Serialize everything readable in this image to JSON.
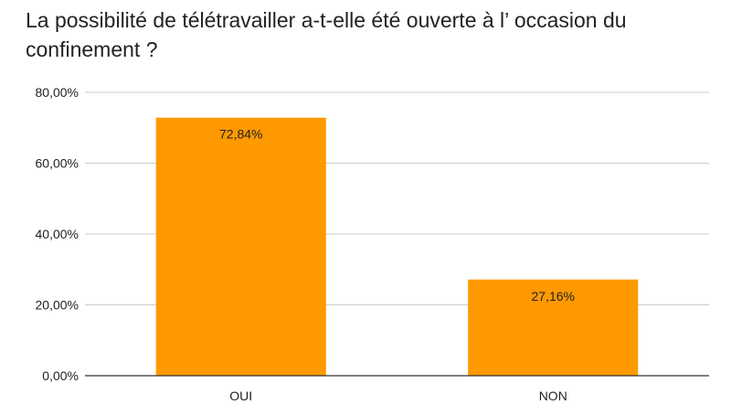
{
  "chart_data": {
    "type": "bar",
    "title": "La possibilité de télétravailler a-t-elle été ouverte à l’ occasion du confinement ?",
    "categories": [
      "OUI",
      "NON"
    ],
    "values": [
      72.84,
      27.16
    ],
    "data_labels": [
      "72,84%",
      "27,16%"
    ],
    "ylim": [
      0,
      80
    ],
    "yticks": [
      0,
      20,
      40,
      60,
      80
    ],
    "ytick_labels": [
      "0,00%",
      "20,00%",
      "40,00%",
      "60,00%",
      "80,00%"
    ],
    "grid": true,
    "legend": "none",
    "bar_color": "#ff9900",
    "grid_color": "#cccccc",
    "axis_color": "#333333"
  }
}
